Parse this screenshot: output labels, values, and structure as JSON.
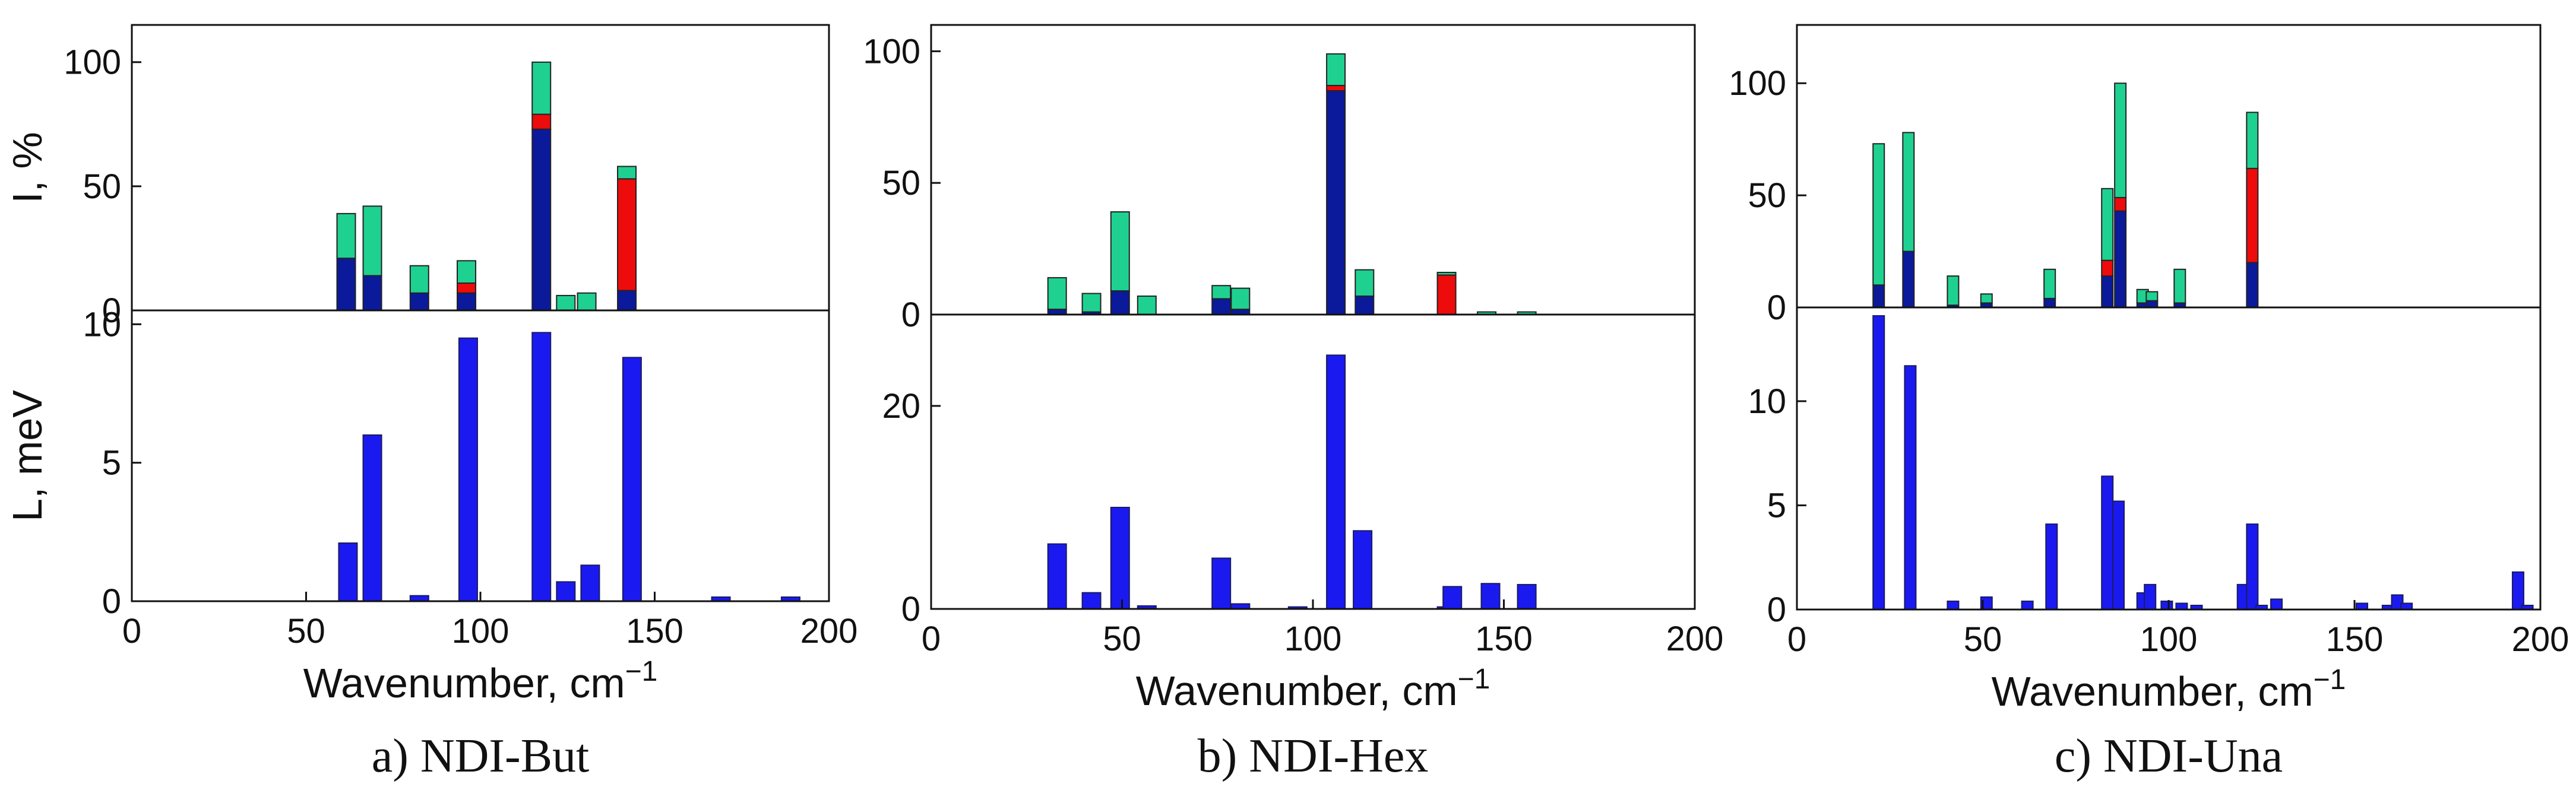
{
  "colors": {
    "green": "#1fd191",
    "red": "#ee0b0b",
    "navy": "#0b1a9a",
    "blue": "#1a1af0",
    "axis": "#111111"
  },
  "labels": {
    "ylabel_top": "I, %",
    "ylabel_bottom": "L, meV",
    "xlabel": "Wavenumber, cm",
    "xlabel_sup": "−1"
  },
  "chart_data": [
    {
      "type": "bar",
      "caption": "a) NDI-But",
      "xlim": [
        0,
        200
      ],
      "xticks": [
        0,
        50,
        100,
        150,
        200
      ],
      "intensity": {
        "ylabel": "I, %",
        "ylim": [
          0,
          115
        ],
        "yticks": [
          0,
          50,
          100
        ],
        "series_names": [
          "navy",
          "red",
          "green"
        ],
        "bars": [
          {
            "x": 61.5,
            "navy": 21,
            "red": 0,
            "green": 18
          },
          {
            "x": 69,
            "navy": 14,
            "red": 0,
            "green": 28
          },
          {
            "x": 82.5,
            "navy": 7,
            "red": 0,
            "green": 11
          },
          {
            "x": 96,
            "navy": 7,
            "red": 4,
            "green": 9
          },
          {
            "x": 117.5,
            "navy": 73,
            "red": 6,
            "green": 21
          },
          {
            "x": 124.5,
            "navy": 0,
            "red": 0,
            "green": 6
          },
          {
            "x": 130.5,
            "navy": 0,
            "red": 0,
            "green": 7
          },
          {
            "x": 142,
            "navy": 8,
            "red": 45,
            "green": 5
          }
        ]
      },
      "energy": {
        "ylabel": "L, meV",
        "ylim": [
          0,
          10.5
        ],
        "yticks": [
          0,
          5,
          10
        ],
        "bars": [
          {
            "x": 62,
            "value": 2.1
          },
          {
            "x": 69,
            "value": 6.0
          },
          {
            "x": 82.5,
            "value": 0.2
          },
          {
            "x": 96.5,
            "value": 9.5
          },
          {
            "x": 117.5,
            "value": 9.7
          },
          {
            "x": 124.5,
            "value": 0.7
          },
          {
            "x": 131.5,
            "value": 1.3
          },
          {
            "x": 143.5,
            "value": 8.8
          },
          {
            "x": 169,
            "value": 0.15
          },
          {
            "x": 189,
            "value": 0.15
          }
        ]
      }
    },
    {
      "type": "bar",
      "caption": "b) NDI-Hex",
      "xlim": [
        0,
        200
      ],
      "xticks": [
        0,
        50,
        100,
        150,
        200
      ],
      "intensity": {
        "ylabel": "",
        "ylim": [
          0,
          110
        ],
        "yticks": [
          0,
          50,
          100
        ],
        "series_names": [
          "navy",
          "red",
          "green"
        ],
        "bars": [
          {
            "x": 33,
            "navy": 2,
            "red": 0,
            "green": 12
          },
          {
            "x": 42,
            "navy": 1,
            "red": 0,
            "green": 7
          },
          {
            "x": 49.5,
            "navy": 9,
            "red": 0,
            "green": 30
          },
          {
            "x": 56.5,
            "navy": 0,
            "red": 0,
            "green": 7
          },
          {
            "x": 76,
            "navy": 6,
            "red": 0,
            "green": 5
          },
          {
            "x": 81,
            "navy": 2,
            "red": 0,
            "green": 8
          },
          {
            "x": 106,
            "navy": 85,
            "red": 2,
            "green": 12
          },
          {
            "x": 113.5,
            "navy": 7,
            "red": 0,
            "green": 10
          },
          {
            "x": 135,
            "navy": 0,
            "red": 15,
            "green": 1
          },
          {
            "x": 145.5,
            "navy": 0,
            "red": 0,
            "green": 1
          },
          {
            "x": 156,
            "navy": 0,
            "red": 0,
            "green": 1
          }
        ]
      },
      "energy": {
        "ylabel": "",
        "ylim": [
          0,
          29
        ],
        "yticks": [
          0,
          20
        ],
        "bars": [
          {
            "x": 33,
            "value": 6.4
          },
          {
            "x": 42,
            "value": 1.6
          },
          {
            "x": 49.5,
            "value": 10.0
          },
          {
            "x": 56.5,
            "value": 0.3
          },
          {
            "x": 76,
            "value": 5.0
          },
          {
            "x": 81,
            "value": 0.5
          },
          {
            "x": 96,
            "value": 0.2
          },
          {
            "x": 106,
            "value": 25.0
          },
          {
            "x": 113,
            "value": 7.7
          },
          {
            "x": 135,
            "value": 0.2
          },
          {
            "x": 136.5,
            "value": 2.2
          },
          {
            "x": 146.5,
            "value": 2.5
          },
          {
            "x": 156,
            "value": 2.4
          }
        ]
      }
    },
    {
      "type": "bar",
      "caption": "c) NDI-Una",
      "xlim": [
        0,
        200
      ],
      "xticks": [
        0,
        50,
        100,
        150,
        200
      ],
      "intensity": {
        "ylabel": "",
        "ylim": [
          0,
          126
        ],
        "yticks": [
          0,
          50,
          100
        ],
        "series_names": [
          "navy",
          "red",
          "green"
        ],
        "bars": [
          {
            "x": 22,
            "navy": 10,
            "red": 0,
            "green": 63
          },
          {
            "x": 30,
            "navy": 25,
            "red": 0,
            "green": 53
          },
          {
            "x": 42,
            "navy": 1,
            "red": 0,
            "green": 13
          },
          {
            "x": 51,
            "navy": 2,
            "red": 0,
            "green": 4
          },
          {
            "x": 68,
            "navy": 4,
            "red": 0,
            "green": 13
          },
          {
            "x": 83.5,
            "navy": 14,
            "red": 7,
            "green": 32
          },
          {
            "x": 87,
            "navy": 43,
            "red": 6,
            "green": 51
          },
          {
            "x": 93,
            "navy": 2,
            "red": 0,
            "green": 6
          },
          {
            "x": 95.5,
            "navy": 3,
            "red": 0,
            "green": 4
          },
          {
            "x": 103,
            "navy": 2,
            "red": 0,
            "green": 15
          },
          {
            "x": 122.5,
            "navy": 20,
            "red": 42,
            "green": 25
          }
        ]
      },
      "energy": {
        "ylabel": "",
        "ylim": [
          0,
          14.5
        ],
        "yticks": [
          0,
          5,
          10
        ],
        "bars": [
          {
            "x": 22,
            "value": 14.1
          },
          {
            "x": 30.5,
            "value": 11.7
          },
          {
            "x": 42,
            "value": 0.4
          },
          {
            "x": 51,
            "value": 0.6
          },
          {
            "x": 62,
            "value": 0.4
          },
          {
            "x": 68.5,
            "value": 4.1
          },
          {
            "x": 83.5,
            "value": 6.4
          },
          {
            "x": 86.5,
            "value": 5.2
          },
          {
            "x": 93,
            "value": 0.8
          },
          {
            "x": 95,
            "value": 1.2
          },
          {
            "x": 99.5,
            "value": 0.4
          },
          {
            "x": 103.5,
            "value": 0.3
          },
          {
            "x": 107.5,
            "value": 0.2
          },
          {
            "x": 120,
            "value": 1.2
          },
          {
            "x": 122.5,
            "value": 4.1
          },
          {
            "x": 125,
            "value": 0.2
          },
          {
            "x": 129,
            "value": 0.5
          },
          {
            "x": 152,
            "value": 0.3
          },
          {
            "x": 159,
            "value": 0.2
          },
          {
            "x": 161.5,
            "value": 0.7
          },
          {
            "x": 164,
            "value": 0.3
          },
          {
            "x": 194,
            "value": 1.8
          },
          {
            "x": 196.5,
            "value": 0.2
          }
        ]
      }
    }
  ]
}
